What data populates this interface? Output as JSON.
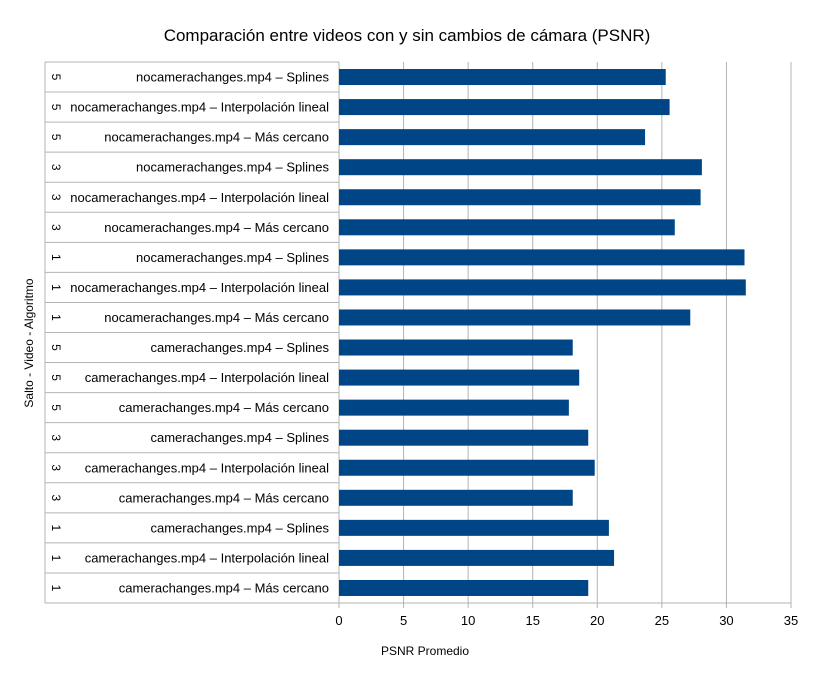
{
  "chart_data": {
    "type": "bar",
    "orientation": "horizontal",
    "title": "Comparación entre videos con y sin cambios de cámara (PSNR)",
    "xlabel": "PSNR Promedio",
    "ylabel": "Salto - Video - Algoritmo",
    "xlim": [
      0,
      35
    ],
    "x_ticks": [
      "0",
      "5",
      "10",
      "15",
      "20",
      "25",
      "30",
      "35"
    ],
    "x_tick_values": [
      0,
      5,
      10,
      15,
      20,
      25,
      30,
      35
    ],
    "grid": "vertical",
    "legend": "none",
    "bar_color": "#004586",
    "categories": [
      {
        "jump": "5",
        "label": "nocamerachanges.mp4 – Splines",
        "value": 25.3
      },
      {
        "jump": "5",
        "label": "nocamerachanges.mp4 – Interpolación lineal",
        "value": 25.6
      },
      {
        "jump": "5",
        "label": "nocamerachanges.mp4 – Más cercano",
        "value": 23.7
      },
      {
        "jump": "3",
        "label": "nocamerachanges.mp4 – Splines",
        "value": 28.1
      },
      {
        "jump": "3",
        "label": "nocamerachanges.mp4 – Interpolación lineal",
        "value": 28.0
      },
      {
        "jump": "3",
        "label": "nocamerachanges.mp4 – Más cercano",
        "value": 26.0
      },
      {
        "jump": "1",
        "label": "nocamerachanges.mp4 – Splines",
        "value": 31.4
      },
      {
        "jump": "1",
        "label": "nocamerachanges.mp4 – Interpolación lineal",
        "value": 31.5
      },
      {
        "jump": "1",
        "label": "nocamerachanges.mp4 – Más cercano",
        "value": 27.2
      },
      {
        "jump": "5",
        "label": "camerachanges.mp4 – Splines",
        "value": 18.1
      },
      {
        "jump": "5",
        "label": "camerachanges.mp4 – Interpolación lineal",
        "value": 18.6
      },
      {
        "jump": "5",
        "label": "camerachanges.mp4 – Más cercano",
        "value": 17.8
      },
      {
        "jump": "3",
        "label": "camerachanges.mp4 – Splines",
        "value": 19.3
      },
      {
        "jump": "3",
        "label": "camerachanges.mp4 – Interpolación lineal",
        "value": 19.8
      },
      {
        "jump": "3",
        "label": "camerachanges.mp4 – Más cercano",
        "value": 18.1
      },
      {
        "jump": "1",
        "label": "camerachanges.mp4 – Splines",
        "value": 20.9
      },
      {
        "jump": "1",
        "label": "camerachanges.mp4 – Interpolación lineal",
        "value": 21.3
      },
      {
        "jump": "1",
        "label": "camerachanges.mp4 – Más cercano",
        "value": 19.3
      }
    ]
  }
}
